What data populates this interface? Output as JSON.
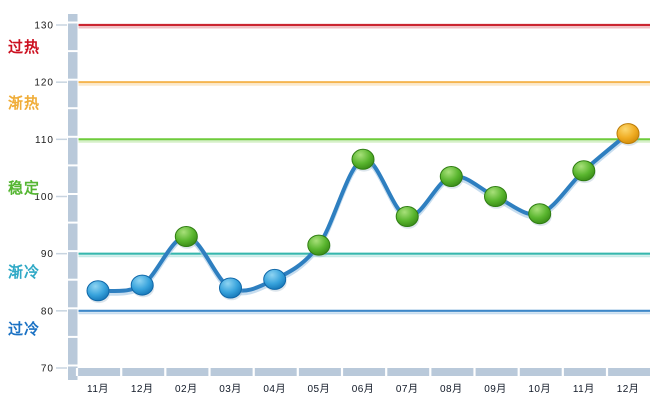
{
  "chart": {
    "y_axis": {
      "ticks": [
        130,
        120,
        110,
        100,
        90,
        80,
        70
      ]
    },
    "x_axis": {
      "labels": [
        "11月",
        "12月",
        "02月",
        "03月",
        "04月",
        "05月",
        "06月",
        "07月",
        "08月",
        "09月",
        "10月",
        "11月",
        "12月"
      ]
    },
    "zones": [
      {
        "key": "overheated",
        "label": "过热",
        "boundary": 130,
        "line_color": "#cb2630",
        "label_color": "#cc1020"
      },
      {
        "key": "warming",
        "label": "渐热",
        "boundary": 120,
        "line_color": "#f5b54f",
        "label_color": "#f0ad38"
      },
      {
        "key": "stable",
        "label": "稳定",
        "boundary": 110,
        "line_color": "#6ecb3c",
        "label_color": "#54b631"
      },
      {
        "key": "cooling",
        "label": "渐冷",
        "boundary": 90,
        "line_color": "#36b7ad",
        "label_color": "#2fa9c6"
      },
      {
        "key": "overcooled",
        "label": "过冷",
        "boundary": 80,
        "line_color": "#3d87c8",
        "label_color": "#1b72c4"
      }
    ],
    "axis_bar_color": "#b9c9da",
    "tick_color": "#c8d4e0",
    "tick_label_color": "#1a1a1a",
    "month_label_color": "#101826"
  },
  "chart_data": {
    "type": "line",
    "title": "",
    "xlabel": "",
    "ylabel": "",
    "categories": [
      "11月",
      "12月",
      "02月",
      "03月",
      "04月",
      "05月",
      "06月",
      "07月",
      "08月",
      "09月",
      "10月",
      "11月",
      "12月"
    ],
    "values": [
      83.5,
      84.5,
      93,
      84,
      85.5,
      91.5,
      106.5,
      96.5,
      103.5,
      100,
      97,
      104.5,
      111
    ],
    "point_zones": [
      "cool",
      "cool",
      "stable",
      "cool",
      "cool",
      "stable",
      "stable",
      "stable",
      "stable",
      "stable",
      "stable",
      "stable",
      "warm"
    ],
    "colors": {
      "line": "#2e7fc0",
      "line_shadow": "#a9cbe6",
      "cool": "#2d9bd8",
      "stable": "#56b62c",
      "warm": "#efae1e"
    },
    "ylim": [
      70,
      130
    ],
    "grid": false,
    "legend": false,
    "zone_lines": [
      130,
      120,
      110,
      90,
      80
    ]
  }
}
